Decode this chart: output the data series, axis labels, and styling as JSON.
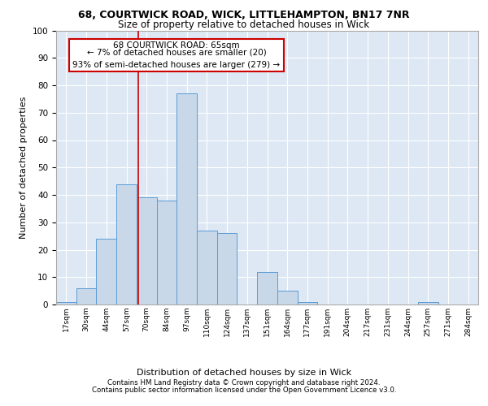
{
  "title_line1": "68, COURTWICK ROAD, WICK, LITTLEHAMPTON, BN17 7NR",
  "title_line2": "Size of property relative to detached houses in Wick",
  "xlabel": "Distribution of detached houses by size in Wick",
  "ylabel": "Number of detached properties",
  "footnote1": "Contains HM Land Registry data © Crown copyright and database right 2024.",
  "footnote2": "Contains public sector information licensed under the Open Government Licence v3.0.",
  "annotation_title": "68 COURTWICK ROAD: 65sqm",
  "annotation_line2": "← 7% of detached houses are smaller (20)",
  "annotation_line3": "93% of semi-detached houses are larger (279) →",
  "bin_labels": [
    "17sqm",
    "30sqm",
    "44sqm",
    "57sqm",
    "70sqm",
    "84sqm",
    "97sqm",
    "110sqm",
    "124sqm",
    "137sqm",
    "151sqm",
    "164sqm",
    "177sqm",
    "191sqm",
    "204sqm",
    "217sqm",
    "231sqm",
    "244sqm",
    "257sqm",
    "271sqm",
    "284sqm"
  ],
  "bar_values": [
    1,
    6,
    24,
    44,
    39,
    38,
    77,
    27,
    26,
    0,
    12,
    5,
    1,
    0,
    0,
    0,
    0,
    0,
    1,
    0,
    0
  ],
  "bar_color": "#c8d8e8",
  "bar_edge_color": "#5b9bd5",
  "vline_bin_index": 3.6,
  "ylim": [
    0,
    100
  ],
  "yticks": [
    0,
    10,
    20,
    30,
    40,
    50,
    60,
    70,
    80,
    90,
    100
  ],
  "background_color": "#dde8f4",
  "vline_color": "#cc0000",
  "annotation_box_color": "#cc0000",
  "annotation_bg": "#ffffff",
  "n_bins": 21
}
